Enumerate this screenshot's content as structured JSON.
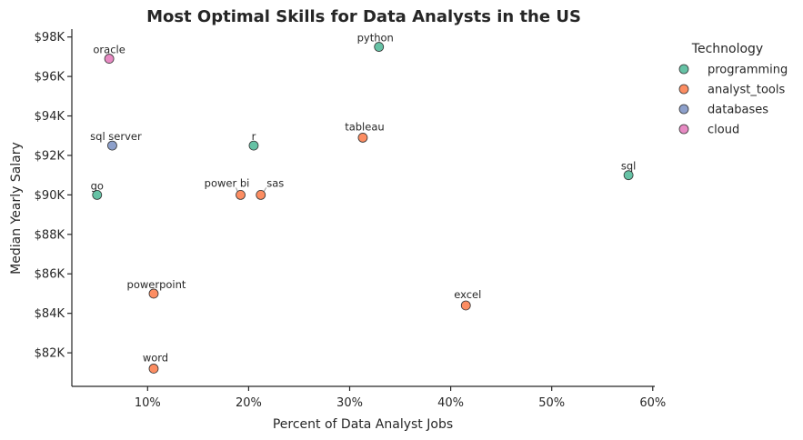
{
  "chart_data": {
    "type": "scatter",
    "title": "Most Optimal Skills for Data Analysts in the US",
    "xlabel": "Percent of Data Analyst Jobs",
    "ylabel": "Median Yearly Salary",
    "xlim": [
      2.5,
      60.2
    ],
    "ylim": [
      80300,
      98400
    ],
    "x_ticks": [
      10,
      20,
      30,
      40,
      50,
      60
    ],
    "x_tick_labels": [
      "10%",
      "20%",
      "30%",
      "40%",
      "50%",
      "60%"
    ],
    "y_ticks": [
      82000,
      84000,
      86000,
      88000,
      90000,
      92000,
      94000,
      96000,
      98000
    ],
    "y_tick_labels": [
      "$82K",
      "$84K",
      "$86K",
      "$88K",
      "$90K",
      "$92K",
      "$94K",
      "$96K",
      "$98K"
    ],
    "grid": false,
    "legend_position": "upper-right-outside",
    "legend_title": "Technology",
    "categories": [
      {
        "name": "programming",
        "color": "#66c2a5"
      },
      {
        "name": "analyst_tools",
        "color": "#fc8d62"
      },
      {
        "name": "databases",
        "color": "#8da0cb"
      },
      {
        "name": "cloud",
        "color": "#e78ac3"
      }
    ],
    "points": [
      {
        "label": "python",
        "x": 32.9,
        "y": 97500,
        "category": "programming"
      },
      {
        "label": "oracle",
        "x": 6.2,
        "y": 96900,
        "category": "cloud"
      },
      {
        "label": "tableau",
        "x": 31.3,
        "y": 92900,
        "category": "analyst_tools"
      },
      {
        "label": "r",
        "x": 20.5,
        "y": 92500,
        "category": "programming"
      },
      {
        "label": "sql server",
        "x": 6.5,
        "y": 92500,
        "category": "databases"
      },
      {
        "label": "sql",
        "x": 57.6,
        "y": 91000,
        "category": "programming"
      },
      {
        "label": "go",
        "x": 5.0,
        "y": 90000,
        "category": "programming"
      },
      {
        "label": "power bi",
        "x": 19.2,
        "y": 90000,
        "category": "analyst_tools"
      },
      {
        "label": "sas",
        "x": 21.2,
        "y": 90000,
        "category": "analyst_tools"
      },
      {
        "label": "powerpoint",
        "x": 10.6,
        "y": 85000,
        "category": "analyst_tools"
      },
      {
        "label": "excel",
        "x": 41.5,
        "y": 84400,
        "category": "analyst_tools"
      },
      {
        "label": "word",
        "x": 10.6,
        "y": 81200,
        "category": "analyst_tools"
      }
    ]
  }
}
